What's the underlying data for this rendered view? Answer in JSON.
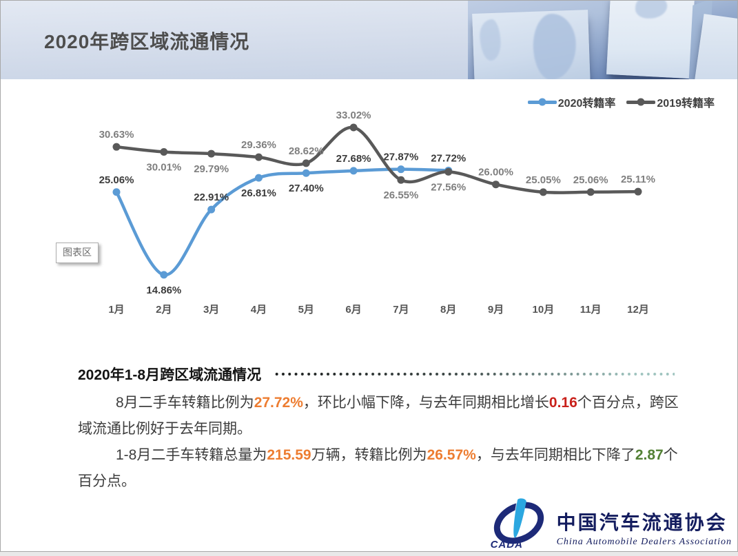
{
  "header": {
    "title": "2020年跨区域流通情况"
  },
  "legend": [
    {
      "label": "2020转籍率",
      "color": "#5B9BD5"
    },
    {
      "label": "2019转籍率",
      "color": "#595959"
    }
  ],
  "chart_tooltip": "图表区",
  "chart_data": {
    "type": "line",
    "title": "",
    "categories": [
      "1月",
      "2月",
      "3月",
      "4月",
      "5月",
      "6月",
      "7月",
      "8月",
      "9月",
      "10月",
      "11月",
      "12月"
    ],
    "series": [
      {
        "name": "2020转籍率",
        "color": "#5B9BD5",
        "label_color": "#3B3B3B",
        "values": [
          25.06,
          14.86,
          22.91,
          26.81,
          27.4,
          27.68,
          27.87,
          27.72
        ],
        "label_positions": [
          "above",
          "below",
          "above",
          "below",
          "below",
          "above",
          "above",
          "above"
        ]
      },
      {
        "name": "2019转籍率",
        "color": "#595959",
        "label_color": "#7F7F7F",
        "values": [
          30.63,
          30.01,
          29.79,
          29.36,
          28.62,
          33.02,
          26.55,
          27.56,
          26.0,
          25.05,
          25.06,
          25.11
        ],
        "label_positions": [
          "above",
          "below",
          "below",
          "above",
          "above",
          "above",
          "below",
          "below",
          "above",
          "above",
          "above",
          "above"
        ]
      }
    ],
    "ylim": [
      14,
      34
    ],
    "grid": false,
    "legend_position": "top-right",
    "value_suffix": "%",
    "smooth": true
  },
  "section": {
    "title": "2020年1-8月跨区域流通情况",
    "paragraphs": [
      {
        "segments": [
          {
            "text": "8月二手车转籍比例为"
          },
          {
            "text": "27.72%",
            "color": "orange"
          },
          {
            "text": "，环比小幅下降，与去年同期相比增长"
          },
          {
            "text": "0.16",
            "color": "red"
          },
          {
            "text": "个百分点，跨区域流通比例好于去年同期。"
          }
        ]
      },
      {
        "segments": [
          {
            "text": "1-8月二手车转籍总量为"
          },
          {
            "text": "215.59",
            "color": "orange"
          },
          {
            "text": "万辆，转籍比例为"
          },
          {
            "text": "26.57%",
            "color": "orange"
          },
          {
            "text": "，与去年同期相比下降了"
          },
          {
            "text": "2.87",
            "color": "green"
          },
          {
            "text": "个百分点。"
          }
        ]
      }
    ]
  },
  "footer_logo": {
    "org_cn": "中国汽车流通协会",
    "org_en": "China Automobile Dealers Association",
    "acronym": "CADA"
  },
  "colors": {
    "orange": "#ED7D31",
    "red": "#C9211B",
    "green": "#538135",
    "blue": "#5B9BD5",
    "dark": "#595959"
  }
}
